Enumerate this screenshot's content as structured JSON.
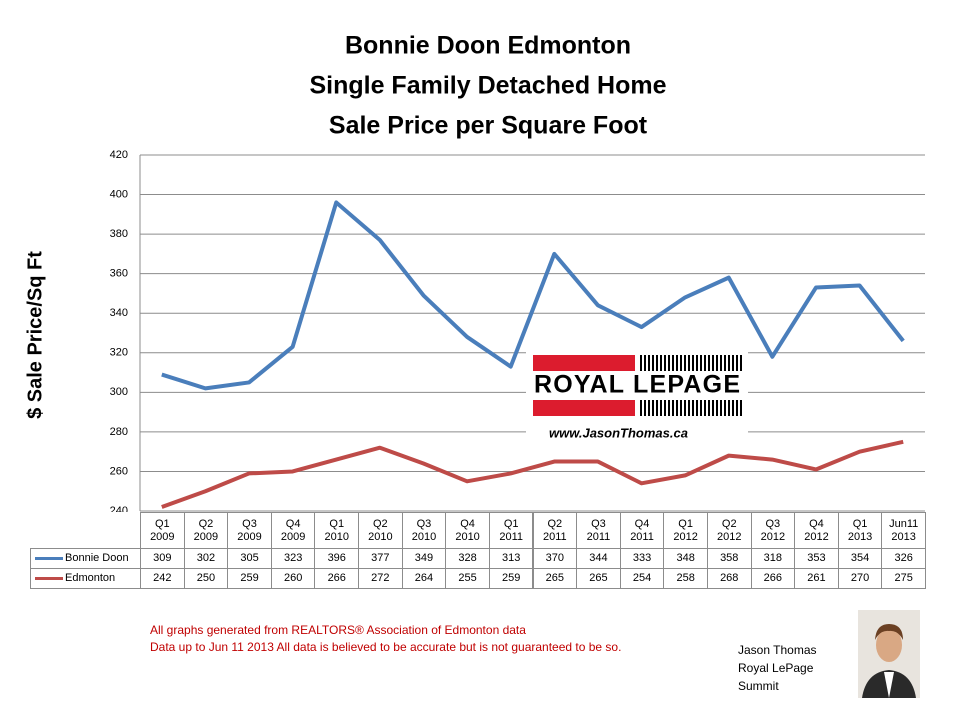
{
  "chart_data": {
    "type": "line",
    "title": [
      "Bonnie Doon Edmonton",
      "Single Family Detached Home",
      "Sale Price per Square Foot"
    ],
    "y_label": "$ Sale Price/Sq Ft",
    "categories": [
      "Q1\n2009",
      "Q2\n2009",
      "Q3\n2009",
      "Q4\n2009",
      "Q1\n2010",
      "Q2\n2010",
      "Q3\n2010",
      "Q4\n2010",
      "Q1\n2011",
      "Q2\n2011",
      "Q3\n2011",
      "Q4\n2011",
      "Q1\n2012",
      "Q2\n2012",
      "Q3\n2012",
      "Q4\n2012",
      "Q1\n2013",
      "Jun11\n2013"
    ],
    "series": [
      {
        "name": "Bonnie Doon",
        "color": "#4a7ebb",
        "values": [
          309,
          302,
          305,
          323,
          396,
          377,
          349,
          328,
          313,
          370,
          344,
          333,
          348,
          358,
          318,
          353,
          354,
          326
        ]
      },
      {
        "name": "Edmonton",
        "color": "#be4b48",
        "values": [
          242,
          250,
          259,
          260,
          266,
          272,
          264,
          255,
          259,
          265,
          265,
          254,
          258,
          268,
          266,
          261,
          270,
          275
        ]
      }
    ],
    "ylim": [
      240,
      420
    ],
    "yticks": [
      240,
      260,
      280,
      300,
      320,
      340,
      360,
      380,
      400,
      420
    ],
    "grid": true,
    "data_table": true
  },
  "logo": {
    "brand": "ROYAL LEPAGE",
    "url": "www.JasonThomas.ca"
  },
  "notes": [
    "All graphs generated from REALTORS® Association of Edmonton data",
    "Data up to  Jun 11 2013  All data is believed to be accurate but is not guaranteed to be so."
  ],
  "signature": [
    "Jason Thomas",
    "Royal LePage",
    "Summit"
  ]
}
